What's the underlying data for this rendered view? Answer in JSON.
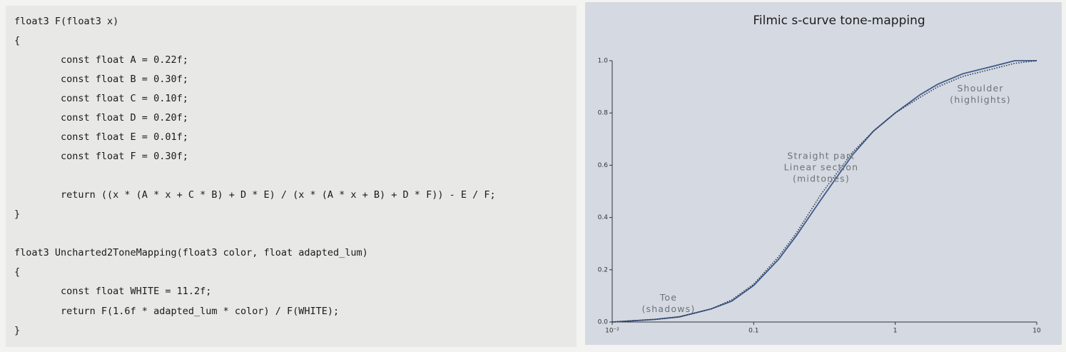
{
  "code": {
    "lines": [
      "float3 F(float3 x)",
      "{",
      "        const float A = 0.22f;",
      "        const float B = 0.30f;",
      "        const float C = 0.10f;",
      "        const float D = 0.20f;",
      "        const float E = 0.01f;",
      "        const float F = 0.30f;",
      "        return ((x * (A * x + C * B) + D * E) / (x * (A * x + B) + D * F)) - E / F;",
      "}",
      "float3 Uncharted2ToneMapping(float3 color, float adapted_lum)",
      "{",
      "        const float WHITE = 11.2f;",
      "        return F(1.6f * adapted_lum * color) / F(WHITE);",
      "}"
    ]
  },
  "chart_data": {
    "type": "line",
    "title": "Filmic s-curve tone-mapping",
    "x": [
      0.01,
      0.02,
      0.03,
      0.05,
      0.07,
      0.1,
      0.15,
      0.2,
      0.3,
      0.5,
      0.7,
      1,
      1.5,
      2,
      3,
      5,
      7,
      10
    ],
    "series": [
      {
        "color": "#3d5a8a",
        "style": "solid",
        "values": [
          0.0,
          0.01,
          0.02,
          0.05,
          0.08,
          0.14,
          0.24,
          0.33,
          0.47,
          0.64,
          0.73,
          0.8,
          0.87,
          0.91,
          0.95,
          0.98,
          1.0,
          1.0
        ]
      },
      {
        "color": "#2b3550",
        "style": "dotted",
        "values": [
          0.0,
          0.01,
          0.02,
          0.05,
          0.085,
          0.145,
          0.25,
          0.34,
          0.49,
          0.65,
          0.73,
          0.8,
          0.86,
          0.9,
          0.94,
          0.97,
          0.99,
          1.0
        ]
      }
    ],
    "log_x": true,
    "xlim": [
      0.01,
      10
    ],
    "ylim": [
      0,
      1
    ],
    "xticks": [
      {
        "value": 0.01,
        "label": "10⁻²"
      },
      0.1,
      1,
      10
    ],
    "yticks": [
      {
        "value": 0,
        "label": "0.0"
      },
      0.2,
      0.4,
      0.6,
      0.8,
      {
        "value": 1,
        "label": "1.0"
      }
    ],
    "annotations": [
      {
        "lines": [
          "Toe",
          "(shadows)"
        ],
        "x": 0.025,
        "y": 0.07
      },
      {
        "lines": [
          "Straight part",
          "Linear section",
          "(midtones)"
        ],
        "x": 0.3,
        "y": 0.59
      },
      {
        "lines": [
          "Shoulder",
          "(highlights)"
        ],
        "x": 4,
        "y": 0.87
      }
    ]
  }
}
